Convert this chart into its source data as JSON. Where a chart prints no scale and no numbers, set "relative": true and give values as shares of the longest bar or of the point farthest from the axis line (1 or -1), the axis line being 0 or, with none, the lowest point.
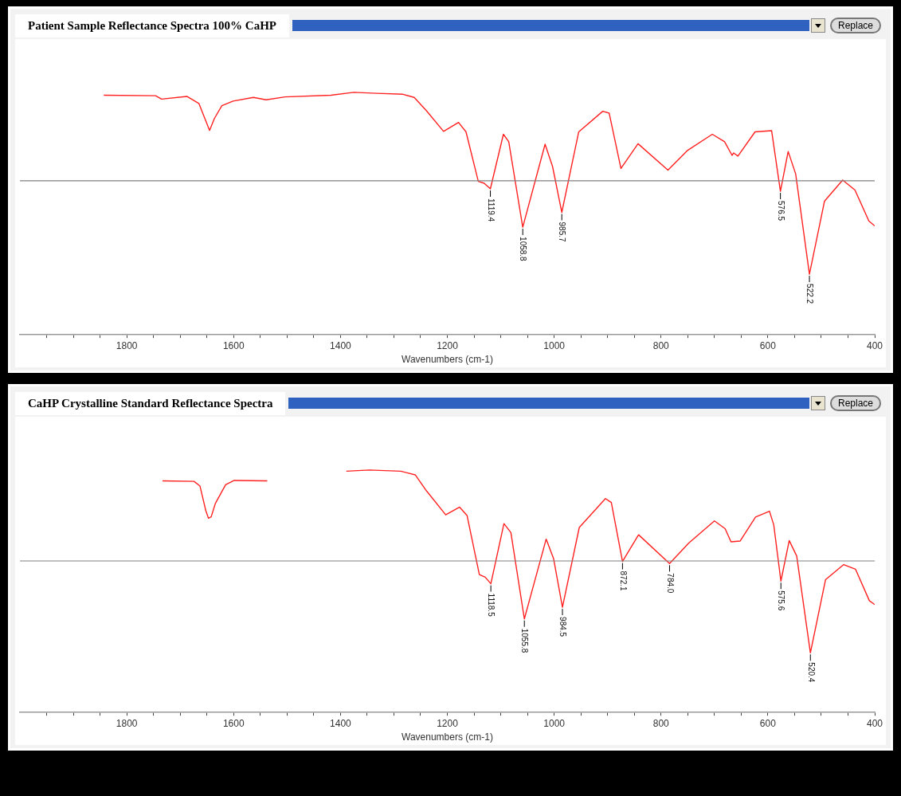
{
  "chart_data": [
    {
      "type": "line",
      "title": "Patient Sample Reflectance Spectra 100% CaHP",
      "xlabel": "Wavenumbers (cm-1)",
      "relative": true,
      "marker": "none",
      "tick_labels": "x",
      "xlim": [
        2000,
        400
      ],
      "xticks": [
        {
          "value": 1950,
          "label": null
        },
        {
          "value": 1900,
          "label": null
        },
        {
          "value": 1850,
          "label": null
        },
        1800,
        {
          "value": 1750,
          "label": null
        },
        {
          "value": 1700,
          "label": null
        },
        {
          "value": 1650,
          "label": null
        },
        1600,
        {
          "value": 1550,
          "label": null
        },
        {
          "value": 1500,
          "label": null
        },
        {
          "value": 1450,
          "label": null
        },
        1400,
        {
          "value": 1350,
          "label": null
        },
        {
          "value": 1300,
          "label": null
        },
        {
          "value": 1250,
          "label": null
        },
        1200,
        {
          "value": 1150,
          "label": null
        },
        {
          "value": 1100,
          "label": null
        },
        {
          "value": 1050,
          "label": null
        },
        1000,
        {
          "value": 950,
          "label": null
        },
        {
          "value": 900,
          "label": null
        },
        {
          "value": 850,
          "label": null
        },
        800,
        {
          "value": 750,
          "label": null
        },
        {
          "value": 700,
          "label": null
        },
        {
          "value": 650,
          "label": null
        },
        600,
        {
          "value": 550,
          "label": null
        },
        {
          "value": 500,
          "label": null
        },
        {
          "value": 450,
          "label": null
        },
        400
      ],
      "series": [
        {
          "color": "#ff2020",
          "x": [
            1843,
            1746,
            1735,
            1687,
            1665,
            1652,
            1645,
            1636,
            1622,
            1601,
            1563,
            1539,
            1504,
            1418,
            1375,
            1332,
            1283,
            1262,
            1239,
            1207,
            1179,
            1165,
            1142,
            1131,
            1119.4,
            1095,
            1085,
            1058.8,
            1017,
            1003,
            985.7,
            954,
            909,
            897,
            875,
            843,
            787,
            750,
            704,
            681,
            667,
            664,
            656,
            624,
            593,
            576.5,
            562,
            548,
            522.2,
            494,
            460,
            437,
            411,
            400
          ],
          "values": [
            0.988,
            0.986,
            0.972,
            0.983,
            0.954,
            0.882,
            0.843,
            0.892,
            0.945,
            0.964,
            0.979,
            0.969,
            0.981,
            0.988,
            1.0,
            0.996,
            0.992,
            0.979,
            0.924,
            0.839,
            0.876,
            0.837,
            0.633,
            0.625,
            0.602,
            0.827,
            0.796,
            0.444,
            0.786,
            0.694,
            0.505,
            0.837,
            0.922,
            0.914,
            0.686,
            0.788,
            0.679,
            0.761,
            0.827,
            0.796,
            0.74,
            0.75,
            0.737,
            0.837,
            0.842,
            0.592,
            0.756,
            0.664,
            0.25,
            0.551,
            0.638,
            0.597,
            0.47,
            0.449
          ]
        }
      ],
      "ref_lines": [
        {
          "axis": "y",
          "value": 0.635,
          "color": "#808080"
        }
      ],
      "annotations": [
        "Replace",
        {
          "text": "1119.4",
          "x": 1119.4,
          "y": 0.602
        },
        {
          "text": "1058.8",
          "x": 1058.8,
          "y": 0.444
        },
        {
          "text": "985.7",
          "x": 985.7,
          "y": 0.505
        },
        {
          "text": "576.5",
          "x": 576.5,
          "y": 0.592
        },
        {
          "text": "522.2",
          "x": 522.2,
          "y": 0.25
        }
      ]
    },
    {
      "type": "line",
      "title": "CaHP Crystalline Standard Reflectance Spectra",
      "xlabel": "Wavenumbers (cm-1)",
      "relative": true,
      "marker": "none",
      "tick_labels": "x",
      "xlim": [
        2000,
        400
      ],
      "xticks": [
        {
          "value": 1950,
          "label": null
        },
        {
          "value": 1900,
          "label": null
        },
        {
          "value": 1850,
          "label": null
        },
        1800,
        {
          "value": 1750,
          "label": null
        },
        {
          "value": 1700,
          "label": null
        },
        {
          "value": 1650,
          "label": null
        },
        1600,
        {
          "value": 1550,
          "label": null
        },
        {
          "value": 1500,
          "label": null
        },
        {
          "value": 1450,
          "label": null
        },
        1400,
        {
          "value": 1350,
          "label": null
        },
        {
          "value": 1300,
          "label": null
        },
        {
          "value": 1250,
          "label": null
        },
        1200,
        {
          "value": 1150,
          "label": null
        },
        {
          "value": 1100,
          "label": null
        },
        {
          "value": 1050,
          "label": null
        },
        1000,
        {
          "value": 950,
          "label": null
        },
        {
          "value": 900,
          "label": null
        },
        {
          "value": 850,
          "label": null
        },
        800,
        {
          "value": 750,
          "label": null
        },
        {
          "value": 700,
          "label": null
        },
        {
          "value": 650,
          "label": null
        },
        600,
        {
          "value": 550,
          "label": null
        },
        {
          "value": 500,
          "label": null
        },
        {
          "value": 450,
          "label": null
        },
        400
      ],
      "series": [
        {
          "color": "#ff2020",
          "x": [
            1733,
            1674,
            1663,
            1652,
            1647,
            1642,
            1634,
            1615,
            1599,
            1537,
            1460,
            1389,
            1346,
            1287,
            1260,
            1239,
            1203,
            1177,
            1163,
            1140,
            1129,
            1118.5,
            1094,
            1081,
            1055.8,
            1015,
            1001,
            984.5,
            953,
            904,
            893,
            872.1,
            842,
            784.0,
            748,
            700,
            680,
            669,
            652,
            623,
            597,
            589,
            575.6,
            560,
            546,
            520.4,
            492,
            458,
            436,
            410,
            400
          ],
          "values": [
            0.955,
            0.953,
            0.934,
            0.832,
            0.801,
            0.807,
            0.863,
            0.939,
            0.957,
            0.955,
            null,
            0.995,
            1.0,
            0.995,
            0.98,
            0.914,
            0.815,
            0.847,
            0.812,
            0.569,
            0.558,
            0.531,
            0.779,
            0.742,
            0.386,
            0.715,
            0.634,
            0.434,
            0.763,
            0.882,
            0.866,
            0.623,
            0.733,
            0.614,
            0.699,
            0.79,
            0.758,
            0.704,
            0.707,
            0.806,
            0.83,
            0.774,
            0.542,
            0.709,
            0.645,
            0.246,
            0.548,
            0.61,
            0.591,
            0.461,
            0.445
          ]
        }
      ],
      "ref_lines": [
        {
          "axis": "y",
          "value": 0.625,
          "color": "#808080"
        }
      ],
      "annotations": [
        "Replace",
        {
          "text": "1118.5",
          "x": 1118.5,
          "y": 0.531
        },
        {
          "text": "1055.8",
          "x": 1055.8,
          "y": 0.386
        },
        {
          "text": "984.5",
          "x": 984.5,
          "y": 0.434
        },
        {
          "text": "872.1",
          "x": 872.1,
          "y": 0.623
        },
        {
          "text": "784.0",
          "x": 784.0,
          "y": 0.614
        },
        {
          "text": "575.6",
          "x": 575.6,
          "y": 0.542
        },
        {
          "text": "520.4",
          "x": 520.4,
          "y": 0.246
        }
      ]
    }
  ]
}
